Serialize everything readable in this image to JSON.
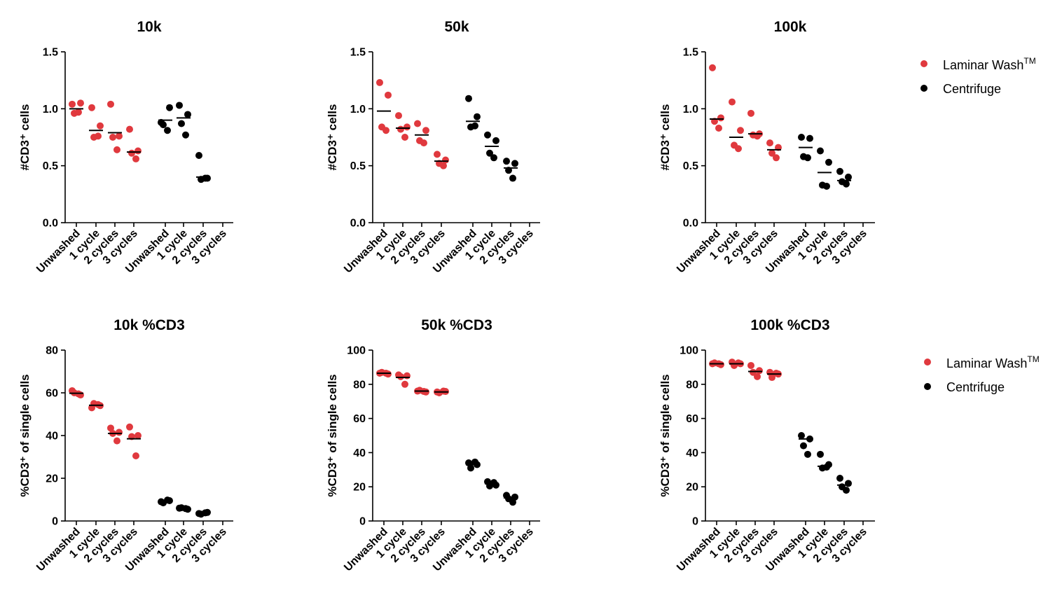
{
  "colors": {
    "laminar": "#e0393e",
    "centrifuge": "#000000"
  },
  "legend": {
    "laminar": "Laminar Wash",
    "laminar_sup": "TM",
    "centrifuge": "Centrifuge"
  },
  "chart_data": [
    {
      "type": "scatter",
      "title": "10k",
      "ylabel": "#CD3⁺ cells",
      "ylim": [
        0,
        1.5
      ],
      "yticks": [
        "0.0",
        "0.5",
        "1.0",
        "1.5"
      ],
      "categories": [
        "Unwashed",
        "1 cycle",
        "2 cycles",
        "3 cycles",
        "Unwashed",
        "1 cycle",
        "2 cycles",
        "3 cycles"
      ],
      "series": [
        {
          "group": "laminar",
          "points": [
            [
              0,
              1.04
            ],
            [
              0,
              1.05
            ],
            [
              0,
              0.96
            ],
            [
              0,
              0.97
            ],
            [
              1,
              1.01
            ],
            [
              1,
              0.85
            ],
            [
              1,
              0.75
            ],
            [
              1,
              0.76
            ],
            [
              2,
              1.04
            ],
            [
              2,
              0.76
            ],
            [
              2,
              0.75
            ],
            [
              2,
              0.64
            ],
            [
              3,
              0.82
            ],
            [
              3,
              0.63
            ],
            [
              3,
              0.61
            ],
            [
              3,
              0.56
            ]
          ],
          "means": [
            1.0,
            0.81,
            0.79,
            0.62
          ]
        },
        {
          "group": "centrifuge",
          "points": [
            [
              4,
              0.88
            ],
            [
              4,
              1.01
            ],
            [
              4,
              0.86
            ],
            [
              4,
              0.81
            ],
            [
              5,
              1.03
            ],
            [
              5,
              0.95
            ],
            [
              5,
              0.87
            ],
            [
              5,
              0.77
            ],
            [
              6,
              0.59
            ],
            [
              6,
              0.39
            ],
            [
              6,
              0.38
            ],
            [
              6,
              0.39
            ]
          ],
          "means": [
            0.9,
            0.92,
            0.4
          ]
        }
      ]
    },
    {
      "type": "scatter",
      "title": "50k",
      "ylabel": "#CD3⁺ cells",
      "ylim": [
        0,
        1.5
      ],
      "yticks": [
        "0.0",
        "0.5",
        "1.0",
        "1.5"
      ],
      "categories": [
        "Unwashed",
        "1 cycle",
        "2 cycles",
        "3 cycles",
        "Unwashed",
        "1 cycle",
        "2 cycles",
        "3 cycles"
      ],
      "series": [
        {
          "group": "laminar",
          "points": [
            [
              0,
              1.23
            ],
            [
              0,
              1.12
            ],
            [
              0,
              0.84
            ],
            [
              0,
              0.81
            ],
            [
              1,
              0.94
            ],
            [
              1,
              0.84
            ],
            [
              1,
              0.82
            ],
            [
              1,
              0.75
            ],
            [
              2,
              0.87
            ],
            [
              2,
              0.81
            ],
            [
              2,
              0.72
            ],
            [
              2,
              0.7
            ],
            [
              3,
              0.6
            ],
            [
              3,
              0.55
            ],
            [
              3,
              0.52
            ],
            [
              3,
              0.5
            ]
          ],
          "means": [
            0.98,
            0.83,
            0.77,
            0.54
          ]
        },
        {
          "group": "centrifuge",
          "points": [
            [
              4,
              1.09
            ],
            [
              4,
              0.93
            ],
            [
              4,
              0.84
            ],
            [
              4,
              0.85
            ],
            [
              5,
              0.77
            ],
            [
              5,
              0.72
            ],
            [
              5,
              0.61
            ],
            [
              5,
              0.57
            ],
            [
              6,
              0.54
            ],
            [
              6,
              0.52
            ],
            [
              6,
              0.46
            ],
            [
              6,
              0.39
            ]
          ],
          "means": [
            0.89,
            0.67,
            0.48
          ]
        }
      ]
    },
    {
      "type": "scatter",
      "title": "100k",
      "ylabel": "#CD3⁺ cells",
      "ylim": [
        0,
        1.5
      ],
      "yticks": [
        "0.0",
        "0.5",
        "1.0",
        "1.5"
      ],
      "categories": [
        "Unwashed",
        "1 cycle",
        "2 cycles",
        "3 cycles",
        "Unwashed",
        "1 cycle",
        "2 cycles",
        "3 cycles"
      ],
      "series": [
        {
          "group": "laminar",
          "points": [
            [
              0,
              1.36
            ],
            [
              0,
              0.92
            ],
            [
              0,
              0.89
            ],
            [
              0,
              0.83
            ],
            [
              1,
              1.06
            ],
            [
              1,
              0.81
            ],
            [
              1,
              0.68
            ],
            [
              1,
              0.65
            ],
            [
              2,
              0.96
            ],
            [
              2,
              0.78
            ],
            [
              2,
              0.77
            ],
            [
              2,
              0.76
            ],
            [
              3,
              0.7
            ],
            [
              3,
              0.66
            ],
            [
              3,
              0.61
            ],
            [
              3,
              0.57
            ]
          ],
          "means": [
            0.91,
            0.75,
            0.78,
            0.64
          ]
        },
        {
          "group": "centrifuge",
          "points": [
            [
              4,
              0.75
            ],
            [
              4,
              0.74
            ],
            [
              4,
              0.58
            ],
            [
              4,
              0.57
            ],
            [
              5,
              0.63
            ],
            [
              5,
              0.53
            ],
            [
              5,
              0.33
            ],
            [
              5,
              0.32
            ],
            [
              6,
              0.45
            ],
            [
              6,
              0.4
            ],
            [
              6,
              0.36
            ],
            [
              6,
              0.34
            ]
          ],
          "means": [
            0.66,
            0.44,
            0.37
          ]
        }
      ]
    },
    {
      "type": "scatter",
      "title": "10k %CD3",
      "ylabel": "%CD3⁺ of single cells",
      "ylim": [
        0,
        80
      ],
      "yticks": [
        "0",
        "20",
        "40",
        "60",
        "80"
      ],
      "categories": [
        "Unwashed",
        "1 cycle",
        "2 cycles",
        "3 cycles",
        "Unwashed",
        "1 cycle",
        "2 cycles",
        "3 cycles"
      ],
      "series": [
        {
          "group": "laminar",
          "points": [
            [
              0,
              61
            ],
            [
              0,
              59
            ],
            [
              0,
              60
            ],
            [
              0,
              59.5
            ],
            [
              1,
              53
            ],
            [
              1,
              54
            ],
            [
              1,
              55
            ],
            [
              1,
              54.5
            ],
            [
              2,
              43.5
            ],
            [
              2,
              41.5
            ],
            [
              2,
              41
            ],
            [
              2,
              37.5
            ],
            [
              3,
              44
            ],
            [
              3,
              40
            ],
            [
              3,
              39.5
            ],
            [
              3,
              30.5
            ]
          ],
          "means": [
            59.8,
            54.2,
            41.0,
            38.5
          ]
        },
        {
          "group": "centrifuge",
          "points": [
            [
              4,
              9
            ],
            [
              4,
              9.5
            ],
            [
              4,
              8.5
            ],
            [
              4,
              9.8
            ],
            [
              5,
              6
            ],
            [
              5,
              5.5
            ],
            [
              5,
              6.2
            ],
            [
              5,
              5.8
            ],
            [
              6,
              3.5
            ],
            [
              6,
              4
            ],
            [
              6,
              3.2
            ],
            [
              6,
              3.8
            ]
          ],
          "means": [
            9.2,
            5.9,
            3.6
          ]
        }
      ]
    },
    {
      "type": "scatter",
      "title": "50k %CD3",
      "ylabel": "%CD3⁺ of single cells",
      "ylim": [
        0,
        100
      ],
      "yticks": [
        "0",
        "20",
        "40",
        "60",
        "80",
        "100"
      ],
      "categories": [
        "Unwashed",
        "1 cycle",
        "2 cycles",
        "3 cycles",
        "Unwashed",
        "1 cycle",
        "2 cycles",
        "3 cycles"
      ],
      "series": [
        {
          "group": "laminar",
          "points": [
            [
              0,
              86.5
            ],
            [
              0,
              86
            ],
            [
              0,
              87
            ],
            [
              0,
              86.5
            ],
            [
              1,
              85.5
            ],
            [
              1,
              85
            ],
            [
              1,
              84.5
            ],
            [
              1,
              80
            ],
            [
              2,
              76
            ],
            [
              2,
              75.5
            ],
            [
              2,
              76.5
            ],
            [
              2,
              75.8
            ],
            [
              3,
              75.5
            ],
            [
              3,
              75.8
            ],
            [
              3,
              75
            ],
            [
              3,
              76
            ]
          ],
          "means": [
            86.5,
            84.0,
            76.0,
            75.5
          ]
        },
        {
          "group": "centrifuge",
          "points": [
            [
              4,
              34
            ],
            [
              4,
              33
            ],
            [
              4,
              31
            ],
            [
              4,
              34.5
            ],
            [
              5,
              23
            ],
            [
              5,
              21
            ],
            [
              5,
              20.5
            ],
            [
              5,
              22.5
            ],
            [
              6,
              15
            ],
            [
              6,
              14
            ],
            [
              6,
              13
            ],
            [
              6,
              11
            ]
          ],
          "means": [
            33.0,
            21.8,
            13.5
          ]
        }
      ]
    },
    {
      "type": "scatter",
      "title": "100k %CD3",
      "ylabel": "%CD3⁺ of single cells",
      "ylim": [
        0,
        100
      ],
      "yticks": [
        "0",
        "20",
        "40",
        "60",
        "80",
        "100"
      ],
      "categories": [
        "Unwashed",
        "1 cycle",
        "2 cycles",
        "3 cycles",
        "Unwashed",
        "1 cycle",
        "2 cycles",
        "3 cycles"
      ],
      "series": [
        {
          "group": "laminar",
          "points": [
            [
              0,
              92
            ],
            [
              0,
              91.5
            ],
            [
              0,
              92.5
            ],
            [
              0,
              92
            ],
            [
              1,
              93
            ],
            [
              1,
              92
            ],
            [
              1,
              91
            ],
            [
              1,
              92.5
            ],
            [
              2,
              91
            ],
            [
              2,
              88
            ],
            [
              2,
              87
            ],
            [
              2,
              84.5
            ],
            [
              3,
              87
            ],
            [
              3,
              86
            ],
            [
              3,
              84
            ],
            [
              3,
              86.5
            ]
          ],
          "means": [
            92.0,
            92.0,
            87.5,
            86.0
          ]
        },
        {
          "group": "centrifuge",
          "points": [
            [
              4,
              50
            ],
            [
              4,
              48
            ],
            [
              4,
              44
            ],
            [
              4,
              39
            ],
            [
              5,
              39
            ],
            [
              5,
              33
            ],
            [
              5,
              31
            ],
            [
              5,
              31.5
            ],
            [
              6,
              25
            ],
            [
              6,
              22
            ],
            [
              6,
              20
            ],
            [
              6,
              18
            ]
          ],
          "means": [
            48.0,
            32.0,
            21.0
          ]
        }
      ]
    }
  ]
}
